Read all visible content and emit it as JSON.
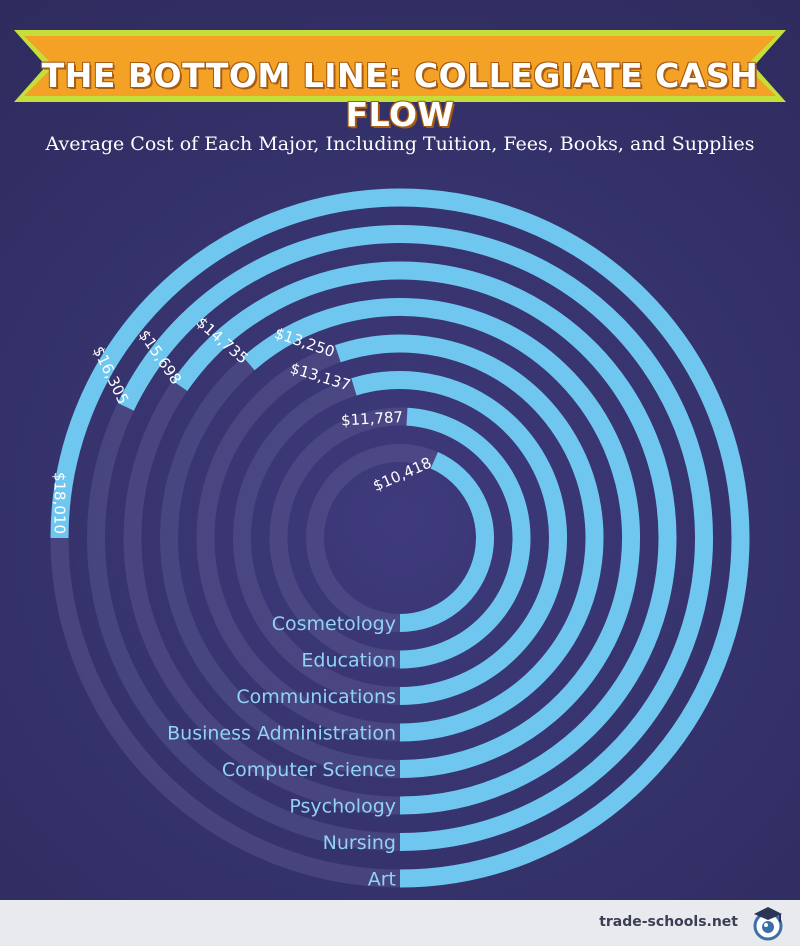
{
  "title": "THE BOTTOM LINE: COLLEGIATE CASH FLOW",
  "subtitle": "Average Cost of Each Major, Including Tuition, Fees, Books, and Supplies",
  "colors": {
    "background": "#343168",
    "bar": "#6fc7f0",
    "bar_track": "#5d5a94",
    "label": "#8fd3f5",
    "banner": "#f4a225",
    "banner_border": "#c6de3a"
  },
  "chart_data": {
    "type": "bar",
    "variant": "radial",
    "title": "Average Cost of Each Major, Including Tuition, Fees, Books, and Supplies",
    "categories": [
      "Cosmetology",
      "Education",
      "Communications",
      "Business Administration",
      "Computer Science",
      "Psychology",
      "Nursing",
      "Art"
    ],
    "values": [
      10418,
      11787,
      13137,
      13250,
      14735,
      15698,
      16305,
      18010
    ],
    "value_labels": [
      "$10,418",
      "$11,787",
      "$13,137",
      "$13,250",
      "$14,735",
      "$15,698",
      "$16,305",
      "$18,010"
    ],
    "max": 18010
  },
  "footer": {
    "brand": "trade-schools.net",
    "logo_icon": "graduation-cap-eye-icon"
  }
}
